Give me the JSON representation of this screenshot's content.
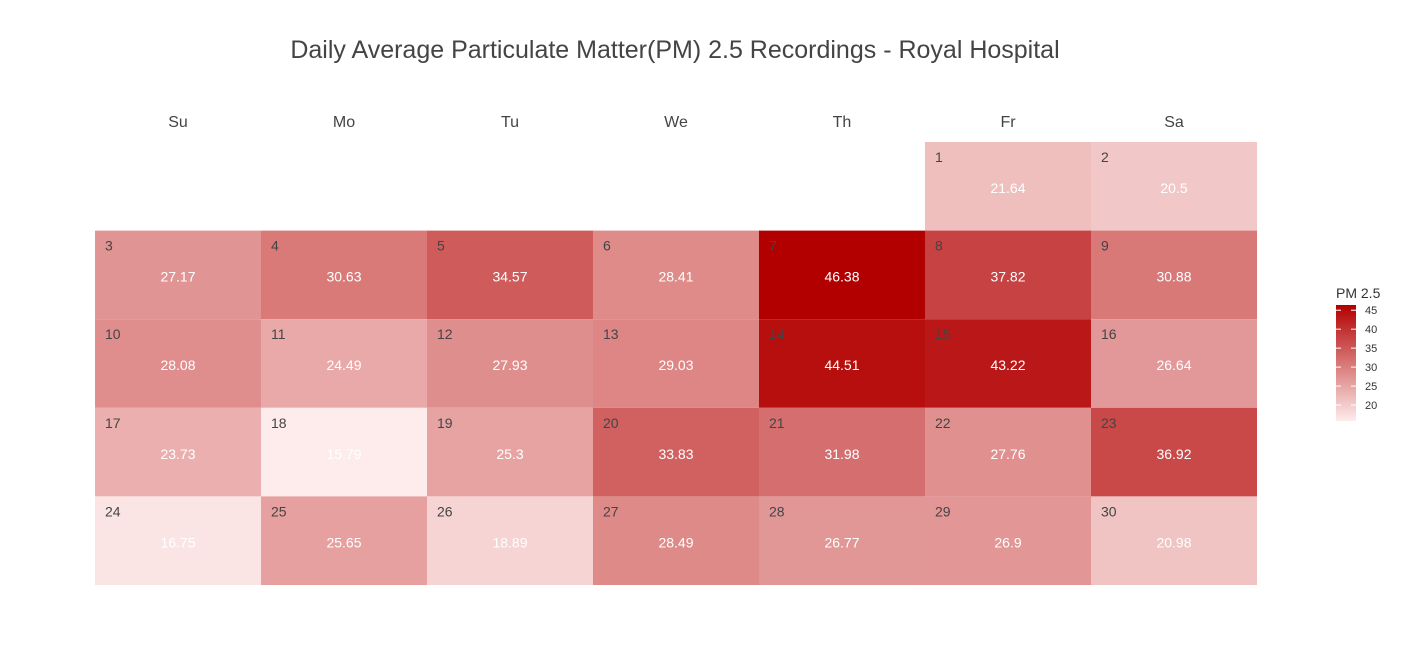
{
  "chart_data": {
    "type": "heatmap",
    "title": "Daily Average Particulate Matter(PM) 2.5 Recordings - Royal Hospital",
    "weekdays": [
      "Su",
      "Mo",
      "Tu",
      "We",
      "Th",
      "Fr",
      "Sa"
    ],
    "first_weekday_index": 5,
    "days": [
      {
        "day": 1,
        "value": 21.64
      },
      {
        "day": 2,
        "value": 20.5
      },
      {
        "day": 3,
        "value": 27.17
      },
      {
        "day": 4,
        "value": 30.63
      },
      {
        "day": 5,
        "value": 34.57
      },
      {
        "day": 6,
        "value": 28.41
      },
      {
        "day": 7,
        "value": 46.38
      },
      {
        "day": 8,
        "value": 37.82
      },
      {
        "day": 9,
        "value": 30.88
      },
      {
        "day": 10,
        "value": 28.08
      },
      {
        "day": 11,
        "value": 24.49
      },
      {
        "day": 12,
        "value": 27.93
      },
      {
        "day": 13,
        "value": 29.03
      },
      {
        "day": 14,
        "value": 44.51
      },
      {
        "day": 15,
        "value": 43.22
      },
      {
        "day": 16,
        "value": 26.64
      },
      {
        "day": 17,
        "value": 23.73
      },
      {
        "day": 18,
        "value": 15.79
      },
      {
        "day": 19,
        "value": 25.3
      },
      {
        "day": 20,
        "value": 33.83
      },
      {
        "day": 21,
        "value": 31.98
      },
      {
        "day": 22,
        "value": 27.76
      },
      {
        "day": 23,
        "value": 36.92
      },
      {
        "day": 24,
        "value": 16.75
      },
      {
        "day": 25,
        "value": 25.65
      },
      {
        "day": 26,
        "value": 18.89
      },
      {
        "day": 27,
        "value": 28.49
      },
      {
        "day": 28,
        "value": 26.77
      },
      {
        "day": 29,
        "value": 26.9
      },
      {
        "day": 30,
        "value": 20.98
      }
    ],
    "legend": {
      "title": "PM 2.5",
      "ticks": [
        20,
        25,
        30,
        35,
        40,
        45
      ],
      "range": [
        15.79,
        46.38
      ],
      "color_low": "#fdeceb",
      "color_high": "#b20000"
    }
  }
}
